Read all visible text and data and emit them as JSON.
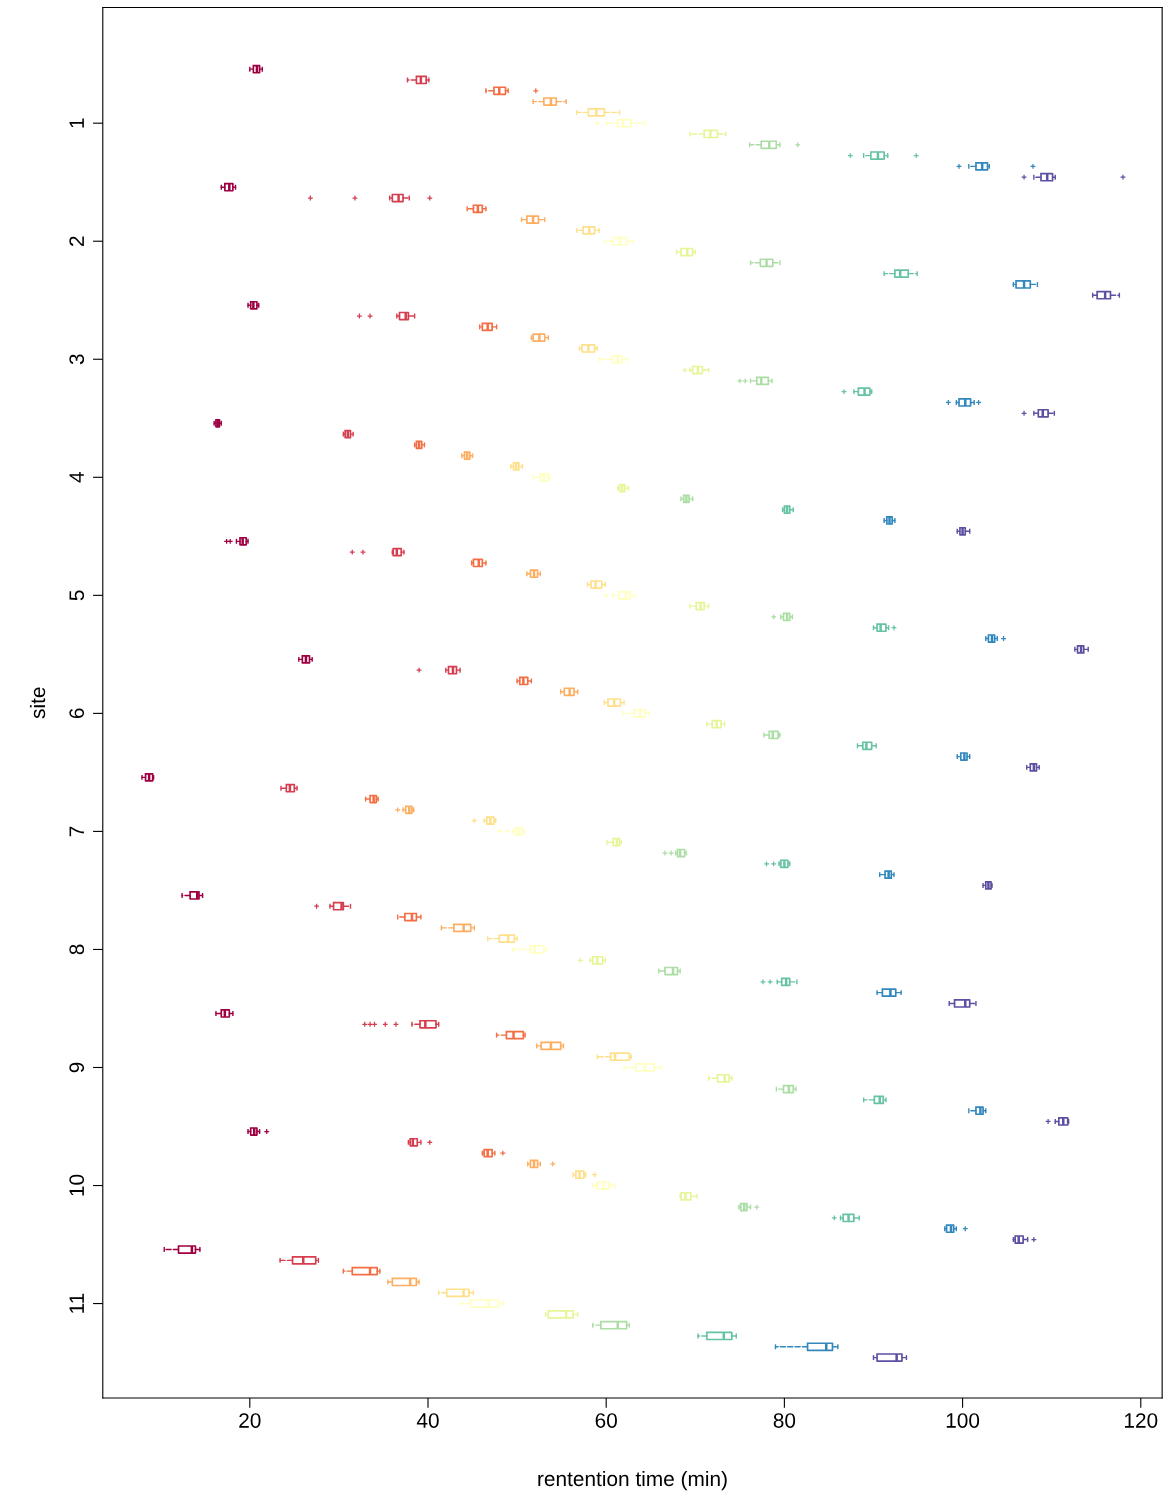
{
  "chart_data": {
    "type": "box",
    "orientation": "horizontal",
    "xlabel": "rentention time (min)",
    "ylabel": "site",
    "categories": [
      "1",
      "2",
      "3",
      "4",
      "5",
      "6",
      "7",
      "8",
      "9",
      "10",
      "11"
    ],
    "xlim": [
      3.5,
      122.4
    ],
    "xticks": [
      20,
      40,
      60,
      80,
      100,
      120
    ],
    "grid": false,
    "marker": "cross",
    "line_style": "dashed",
    "series": [
      {
        "color": "#9e0142",
        "boxes": [
          {
            "low": 20.0,
            "q1": 20.4,
            "median": 20.8,
            "q3": 21.1,
            "high": 21.4
          },
          {
            "low": 16.8,
            "q1": 17.2,
            "median": 17.7,
            "q3": 18.1,
            "high": 18.4
          },
          {
            "low": 19.8,
            "q1": 20.1,
            "median": 20.4,
            "q3": 20.8,
            "high": 21.0
          },
          {
            "low": 16.0,
            "q1": 16.2,
            "median": 16.4,
            "q3": 16.6,
            "high": 16.8
          },
          {
            "low": 18.5,
            "q1": 18.9,
            "median": 19.2,
            "q3": 19.6,
            "high": 19.8,
            "outliers": [
              17.4,
              17.8
            ]
          },
          {
            "low": 25.5,
            "q1": 25.9,
            "median": 26.3,
            "q3": 26.7,
            "high": 27.0
          },
          {
            "low": 7.9,
            "q1": 8.3,
            "median": 8.7,
            "q3": 9.1,
            "high": 9.2
          },
          {
            "low": 12.4,
            "q1": 13.3,
            "median": 14.1,
            "q3": 14.3,
            "high": 14.7
          },
          {
            "low": 16.2,
            "q1": 16.8,
            "median": 17.2,
            "q3": 17.7,
            "high": 18.1
          },
          {
            "low": 19.8,
            "q1": 20.1,
            "median": 20.5,
            "q3": 20.8,
            "high": 21.1,
            "outliers": [
              21.9
            ]
          },
          {
            "low": 10.4,
            "q1": 12.0,
            "median": 13.5,
            "q3": 13.9,
            "high": 14.4
          }
        ]
      },
      {
        "color": "#d53e4f",
        "boxes": [
          {
            "low": 37.7,
            "q1": 38.7,
            "median": 39.2,
            "q3": 39.8,
            "high": 40.1
          },
          {
            "low": 35.7,
            "q1": 36.0,
            "median": 36.7,
            "q3": 37.2,
            "high": 37.9,
            "outliers": [
              26.8,
              31.8,
              40.2
            ]
          },
          {
            "low": 36.5,
            "q1": 36.8,
            "median": 37.5,
            "q3": 37.8,
            "high": 38.5,
            "outliers": [
              32.3,
              33.5
            ]
          },
          {
            "low": 30.5,
            "q1": 30.7,
            "median": 31.0,
            "q3": 31.3,
            "high": 31.6
          },
          {
            "low": 36.0,
            "q1": 36.1,
            "median": 36.5,
            "q3": 37.0,
            "high": 37.3,
            "outliers": [
              31.5,
              32.7
            ]
          },
          {
            "low": 42.0,
            "q1": 42.3,
            "median": 42.8,
            "q3": 43.2,
            "high": 43.6,
            "outliers": [
              39.0
            ]
          },
          {
            "low": 23.5,
            "q1": 24.1,
            "median": 24.5,
            "q3": 25.0,
            "high": 25.3
          },
          {
            "low": 29.0,
            "q1": 29.4,
            "median": 30.3,
            "q3": 30.5,
            "high": 31.3,
            "outliers": [
              27.5
            ]
          },
          {
            "low": 38.2,
            "q1": 39.1,
            "median": 39.7,
            "q3": 40.9,
            "high": 41.2,
            "outliers": [
              32.9,
              33.5,
              34.0,
              35.2,
              36.4
            ]
          },
          {
            "low": 37.8,
            "q1": 38.0,
            "median": 38.3,
            "q3": 38.8,
            "high": 39.2,
            "outliers": [
              40.2
            ]
          },
          {
            "low": 23.4,
            "q1": 24.8,
            "median": 26.0,
            "q3": 27.4,
            "high": 27.7
          }
        ]
      },
      {
        "color": "#f46d43",
        "boxes": [
          {
            "low": 46.5,
            "q1": 47.4,
            "median": 48.0,
            "q3": 48.7,
            "high": 49.0,
            "outliers": [
              52.1
            ]
          },
          {
            "low": 44.4,
            "q1": 45.1,
            "median": 45.6,
            "q3": 46.1,
            "high": 46.5
          },
          {
            "low": 45.8,
            "q1": 46.1,
            "median": 46.7,
            "q3": 47.2,
            "high": 47.7
          },
          {
            "low": 38.5,
            "q1": 38.7,
            "median": 39.0,
            "q3": 39.3,
            "high": 39.6
          },
          {
            "low": 44.9,
            "q1": 45.1,
            "median": 45.7,
            "q3": 46.1,
            "high": 46.5
          },
          {
            "low": 50.0,
            "q1": 50.3,
            "median": 50.7,
            "q3": 51.2,
            "high": 51.6
          },
          {
            "low": 33.0,
            "q1": 33.5,
            "median": 33.9,
            "q3": 34.2,
            "high": 34.4
          },
          {
            "low": 36.6,
            "q1": 37.4,
            "median": 38.2,
            "q3": 38.7,
            "high": 39.2
          },
          {
            "low": 47.7,
            "q1": 48.8,
            "median": 49.6,
            "q3": 50.7,
            "high": 50.9
          },
          {
            "low": 46.1,
            "q1": 46.3,
            "median": 46.7,
            "q3": 47.2,
            "high": 47.5,
            "outliers": [
              48.4
            ]
          },
          {
            "low": 30.5,
            "q1": 31.5,
            "median": 33.5,
            "q3": 34.3,
            "high": 34.6
          }
        ]
      },
      {
        "color": "#fdae61",
        "boxes": [
          {
            "low": 51.8,
            "q1": 53.0,
            "median": 53.8,
            "q3": 54.4,
            "high": 55.5
          },
          {
            "low": 50.5,
            "q1": 51.1,
            "median": 51.8,
            "q3": 52.4,
            "high": 53.1
          },
          {
            "low": 51.6,
            "q1": 51.8,
            "median": 52.5,
            "q3": 53.1,
            "high": 53.5
          },
          {
            "low": 43.8,
            "q1": 44.1,
            "median": 44.4,
            "q3": 44.7,
            "high": 45.0
          },
          {
            "low": 51.1,
            "q1": 51.5,
            "median": 51.9,
            "q3": 52.3,
            "high": 52.6
          },
          {
            "low": 54.9,
            "q1": 55.3,
            "median": 55.9,
            "q3": 56.4,
            "high": 56.8
          },
          {
            "low": 37.2,
            "q1": 37.5,
            "median": 37.9,
            "q3": 38.2,
            "high": 38.4,
            "outliers": [
              36.6
            ]
          },
          {
            "low": 41.5,
            "q1": 42.9,
            "median": 44.0,
            "q3": 44.8,
            "high": 45.2
          },
          {
            "low": 52.2,
            "q1": 52.7,
            "median": 53.8,
            "q3": 54.9,
            "high": 55.2
          },
          {
            "low": 51.2,
            "q1": 51.5,
            "median": 51.9,
            "q3": 52.3,
            "high": 52.6,
            "outliers": [
              54.0
            ]
          },
          {
            "low": 35.5,
            "q1": 36.0,
            "median": 38.0,
            "q3": 38.7,
            "high": 39.0
          }
        ]
      },
      {
        "color": "#fee08b",
        "boxes": [
          {
            "low": 56.7,
            "q1": 58.0,
            "median": 58.9,
            "q3": 59.8,
            "high": 61.5
          },
          {
            "low": 56.7,
            "q1": 57.4,
            "median": 58.1,
            "q3": 58.7,
            "high": 59.2
          },
          {
            "low": 57.0,
            "q1": 57.3,
            "median": 58.0,
            "q3": 58.7,
            "high": 59.0
          },
          {
            "low": 49.3,
            "q1": 49.6,
            "median": 49.9,
            "q3": 50.2,
            "high": 50.6
          },
          {
            "low": 57.9,
            "q1": 58.3,
            "median": 58.8,
            "q3": 59.5,
            "high": 59.9
          },
          {
            "low": 59.8,
            "q1": 60.2,
            "median": 60.9,
            "q3": 61.6,
            "high": 62.0
          },
          {
            "low": 46.3,
            "q1": 46.6,
            "median": 47.0,
            "q3": 47.4,
            "high": 47.6,
            "outliers": [
              45.2
            ]
          },
          {
            "low": 46.7,
            "q1": 48.0,
            "median": 49.0,
            "q3": 49.7,
            "high": 50.0
          },
          {
            "low": 59.0,
            "q1": 60.5,
            "median": 61.0,
            "q3": 62.6,
            "high": 62.8
          },
          {
            "low": 56.3,
            "q1": 56.6,
            "median": 57.0,
            "q3": 57.5,
            "high": 57.7,
            "outliers": [
              58.7
            ]
          },
          {
            "low": 41.2,
            "q1": 42.1,
            "median": 44.0,
            "q3": 44.6,
            "high": 45.1
          }
        ]
      },
      {
        "color": "#ffffbf",
        "boxes": [
          {
            "low": 60.1,
            "q1": 61.3,
            "median": 61.9,
            "q3": 62.8,
            "high": 64.3,
            "outliers": [
              59.0
            ]
          },
          {
            "low": 59.8,
            "q1": 60.8,
            "median": 61.6,
            "q3": 62.3,
            "high": 63.0
          },
          {
            "low": 59.2,
            "q1": 60.7,
            "median": 61.3,
            "q3": 61.8,
            "high": 62.4
          },
          {
            "low": 51.8,
            "q1": 52.6,
            "median": 53.0,
            "q3": 53.5,
            "high": 53.7
          },
          {
            "low": 60.7,
            "q1": 61.4,
            "median": 62.2,
            "q3": 62.7,
            "high": 63.3,
            "outliers": [
              60.0
            ]
          },
          {
            "low": 61.9,
            "q1": 63.1,
            "median": 63.8,
            "q3": 64.4,
            "high": 64.8
          },
          {
            "low": 49.5,
            "q1": 49.8,
            "median": 50.2,
            "q3": 50.6,
            "high": 50.8,
            "outliers": [
              48.0,
              48.9
            ]
          },
          {
            "low": 49.5,
            "q1": 51.5,
            "median": 52.0,
            "q3": 53.0,
            "high": 53.3
          },
          {
            "low": 62.0,
            "q1": 63.3,
            "median": 64.3,
            "q3": 65.4,
            "high": 66.1
          },
          {
            "low": 58.5,
            "q1": 59.0,
            "median": 59.7,
            "q3": 60.3,
            "high": 61.0
          },
          {
            "low": 43.7,
            "q1": 44.8,
            "median": 46.8,
            "q3": 47.9,
            "high": 48.4
          }
        ]
      },
      {
        "color": "#e6f598",
        "boxes": [
          {
            "low": 69.4,
            "q1": 71.0,
            "median": 71.7,
            "q3": 72.5,
            "high": 73.4
          },
          {
            "low": 67.9,
            "q1": 68.4,
            "median": 69.1,
            "q3": 69.7,
            "high": 70.0
          },
          {
            "low": 69.4,
            "q1": 69.7,
            "median": 70.3,
            "q3": 70.8,
            "high": 71.5,
            "outliers": [
              68.8
            ]
          },
          {
            "low": 61.3,
            "q1": 61.5,
            "median": 61.8,
            "q3": 62.1,
            "high": 62.5
          },
          {
            "low": 69.4,
            "q1": 70.1,
            "median": 70.6,
            "q3": 71.0,
            "high": 71.5
          },
          {
            "low": 71.3,
            "q1": 71.9,
            "median": 72.4,
            "q3": 72.9,
            "high": 73.3
          },
          {
            "low": 60.1,
            "q1": 60.8,
            "median": 61.2,
            "q3": 61.5,
            "high": 61.7
          },
          {
            "low": 58.2,
            "q1": 58.5,
            "median": 59.0,
            "q3": 59.6,
            "high": 59.9,
            "outliers": [
              57.1
            ]
          },
          {
            "low": 71.5,
            "q1": 72.5,
            "median": 73.3,
            "q3": 73.8,
            "high": 74.1
          },
          {
            "low": 68.3,
            "q1": 68.4,
            "median": 68.9,
            "q3": 69.5,
            "high": 70.2
          },
          {
            "low": 53.2,
            "q1": 53.5,
            "median": 55.5,
            "q3": 56.3,
            "high": 56.8
          }
        ]
      },
      {
        "color": "#abdda4",
        "boxes": [
          {
            "low": 76.1,
            "q1": 77.4,
            "median": 78.3,
            "q3": 79.1,
            "high": 79.5,
            "outliers": [
              81.5
            ]
          },
          {
            "low": 76.2,
            "q1": 77.3,
            "median": 78.0,
            "q3": 78.7,
            "high": 79.5
          },
          {
            "low": 76.2,
            "q1": 76.9,
            "median": 77.4,
            "q3": 78.2,
            "high": 78.6,
            "outliers": [
              75.0,
              75.6
            ]
          },
          {
            "low": 68.4,
            "q1": 68.7,
            "median": 69.0,
            "q3": 69.3,
            "high": 69.7
          },
          {
            "low": 79.6,
            "q1": 79.9,
            "median": 80.3,
            "q3": 80.6,
            "high": 80.9,
            "outliers": [
              78.8
            ]
          },
          {
            "low": 77.7,
            "q1": 78.3,
            "median": 78.7,
            "q3": 79.3,
            "high": 79.5
          },
          {
            "low": 67.8,
            "q1": 68.0,
            "median": 68.3,
            "q3": 68.8,
            "high": 69.0,
            "outliers": [
              66.6,
              67.3
            ]
          },
          {
            "low": 65.9,
            "q1": 66.6,
            "median": 67.5,
            "q3": 68.0,
            "high": 68.3
          },
          {
            "low": 79.1,
            "q1": 79.9,
            "median": 80.5,
            "q3": 81.0,
            "high": 81.3
          },
          {
            "low": 74.9,
            "q1": 75.1,
            "median": 75.5,
            "q3": 75.8,
            "high": 76.2,
            "outliers": [
              76.9
            ]
          },
          {
            "low": 58.5,
            "q1": 59.4,
            "median": 61.3,
            "q3": 62.3,
            "high": 62.6
          }
        ]
      },
      {
        "color": "#66c2a5",
        "boxes": [
          {
            "low": 88.9,
            "q1": 89.7,
            "median": 90.5,
            "q3": 91.2,
            "high": 91.6,
            "outliers": [
              87.4,
              94.8
            ]
          },
          {
            "low": 91.2,
            "q1": 92.4,
            "median": 93.0,
            "q3": 93.9,
            "high": 94.9
          },
          {
            "low": 87.8,
            "q1": 88.3,
            "median": 89.0,
            "q3": 89.6,
            "high": 89.8,
            "outliers": [
              86.7
            ]
          },
          {
            "low": 79.8,
            "q1": 80.0,
            "median": 80.3,
            "q3": 80.6,
            "high": 81.0
          },
          {
            "low": 90.0,
            "q1": 90.4,
            "median": 90.8,
            "q3": 91.4,
            "high": 91.7,
            "outliers": [
              92.3
            ]
          },
          {
            "low": 88.2,
            "q1": 88.8,
            "median": 89.2,
            "q3": 89.8,
            "high": 90.3
          },
          {
            "low": 79.4,
            "q1": 79.6,
            "median": 80.0,
            "q3": 80.4,
            "high": 80.6,
            "outliers": [
              78.0,
              78.8
            ]
          },
          {
            "low": 79.2,
            "q1": 79.7,
            "median": 80.2,
            "q3": 80.6,
            "high": 81.4,
            "outliers": [
              77.6,
              78.4
            ]
          },
          {
            "low": 88.9,
            "q1": 90.1,
            "median": 90.7,
            "q3": 91.1,
            "high": 91.4
          },
          {
            "low": 86.3,
            "q1": 86.6,
            "median": 87.2,
            "q3": 87.8,
            "high": 88.4,
            "outliers": [
              85.6
            ]
          },
          {
            "low": 70.3,
            "q1": 71.3,
            "median": 73.2,
            "q3": 74.1,
            "high": 74.6
          }
        ]
      },
      {
        "color": "#3288bd",
        "boxes": [
          {
            "low": 100.7,
            "q1": 101.5,
            "median": 102.2,
            "q3": 102.8,
            "high": 103.0,
            "outliers": [
              99.6,
              107.9
            ]
          },
          {
            "low": 105.7,
            "q1": 106.0,
            "median": 106.9,
            "q3": 107.6,
            "high": 108.4
          },
          {
            "low": 99.3,
            "q1": 99.6,
            "median": 100.3,
            "q3": 100.9,
            "high": 101.3,
            "outliers": [
              98.4,
              101.8
            ]
          },
          {
            "low": 91.2,
            "q1": 91.5,
            "median": 91.8,
            "q3": 92.1,
            "high": 92.4
          },
          {
            "low": 102.6,
            "q1": 102.9,
            "median": 103.3,
            "q3": 103.6,
            "high": 103.9,
            "outliers": [
              104.6
            ]
          },
          {
            "low": 99.4,
            "q1": 99.8,
            "median": 100.2,
            "q3": 100.5,
            "high": 100.8
          },
          {
            "low": 90.7,
            "q1": 91.3,
            "median": 91.7,
            "q3": 92.0,
            "high": 92.3
          },
          {
            "low": 90.4,
            "q1": 91.0,
            "median": 91.9,
            "q3": 92.5,
            "high": 93.1
          },
          {
            "low": 100.7,
            "q1": 101.5,
            "median": 102.0,
            "q3": 102.3,
            "high": 102.6
          },
          {
            "low": 98.0,
            "q1": 98.2,
            "median": 98.7,
            "q3": 99.0,
            "high": 99.3,
            "outliers": [
              100.3
            ]
          },
          {
            "low": 79.0,
            "q1": 82.6,
            "median": 84.7,
            "q3": 85.4,
            "high": 86.0
          }
        ]
      },
      {
        "color": "#5e4fa2",
        "boxes": [
          {
            "low": 108.0,
            "q1": 108.8,
            "median": 109.5,
            "q3": 110.1,
            "high": 110.4,
            "outliers": [
              106.9,
              118.0
            ]
          },
          {
            "low": 114.6,
            "q1": 115.1,
            "median": 116.0,
            "q3": 116.6,
            "high": 117.6
          },
          {
            "low": 108.0,
            "q1": 108.5,
            "median": 109.0,
            "q3": 109.6,
            "high": 110.3,
            "outliers": [
              106.9
            ]
          },
          {
            "low": 99.4,
            "q1": 99.7,
            "median": 100.0,
            "q3": 100.3,
            "high": 100.8
          },
          {
            "low": 112.6,
            "q1": 112.9,
            "median": 113.3,
            "q3": 113.6,
            "high": 114.1
          },
          {
            "low": 107.2,
            "q1": 107.6,
            "median": 108.0,
            "q3": 108.3,
            "high": 108.6
          },
          {
            "low": 102.3,
            "q1": 102.6,
            "median": 102.9,
            "q3": 103.2,
            "high": 103.3
          },
          {
            "low": 98.5,
            "q1": 99.1,
            "median": 100.3,
            "q3": 100.8,
            "high": 101.5
          },
          {
            "low": 110.4,
            "q1": 110.8,
            "median": 111.3,
            "q3": 111.8,
            "high": 111.9,
            "outliers": [
              109.6
            ]
          },
          {
            "low": 105.7,
            "q1": 105.9,
            "median": 106.3,
            "q3": 106.8,
            "high": 107.3,
            "outliers": [
              108.0
            ]
          },
          {
            "low": 90.0,
            "q1": 90.4,
            "median": 92.6,
            "q3": 93.2,
            "high": 93.7
          }
        ]
      }
    ]
  }
}
